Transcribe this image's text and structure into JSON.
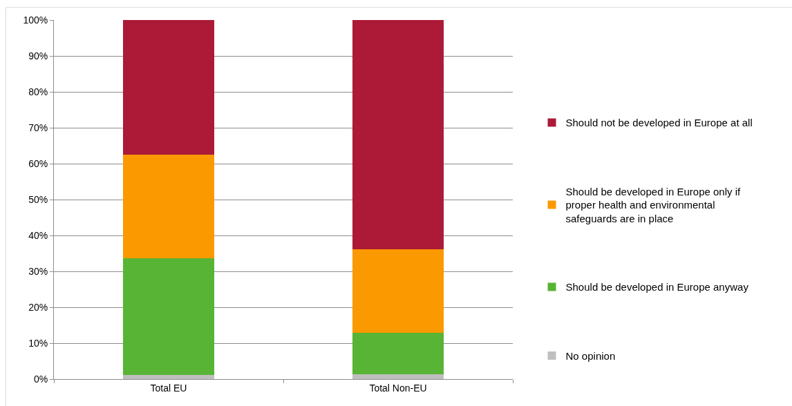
{
  "chart_data": {
    "type": "bar",
    "categories": [
      "Total EU",
      "Total Non-EU"
    ],
    "series": [
      {
        "name": "No opinion",
        "color": "#bfbfbf",
        "values": [
          1.2,
          1.4
        ]
      },
      {
        "name": "Should be developed in Europe anyway",
        "color": "#58b434",
        "values": [
          32.5,
          11.5
        ]
      },
      {
        "name": "Should be developed in Europe only if proper health and environmental safeguards are in place",
        "color": "#fb9900",
        "values": [
          28.8,
          23.3
        ]
      },
      {
        "name": "Should not be developed in Europe at all",
        "color": "#ac1a38",
        "values": [
          37.5,
          63.8
        ]
      }
    ],
    "stacked": true,
    "ylim": [
      0,
      100
    ],
    "yticks": [
      {
        "value": 0,
        "label": "0%"
      },
      {
        "value": 10,
        "label": "10%"
      },
      {
        "value": 20,
        "label": "20%"
      },
      {
        "value": 30,
        "label": "30%"
      },
      {
        "value": 40,
        "label": "40%"
      },
      {
        "value": 50,
        "label": "50%"
      },
      {
        "value": 60,
        "label": "60%"
      },
      {
        "value": 70,
        "label": "70%"
      },
      {
        "value": 80,
        "label": "80%"
      },
      {
        "value": 90,
        "label": "90%"
      },
      {
        "value": 100,
        "label": "100%"
      }
    ],
    "grid": "y",
    "legend": "right"
  }
}
